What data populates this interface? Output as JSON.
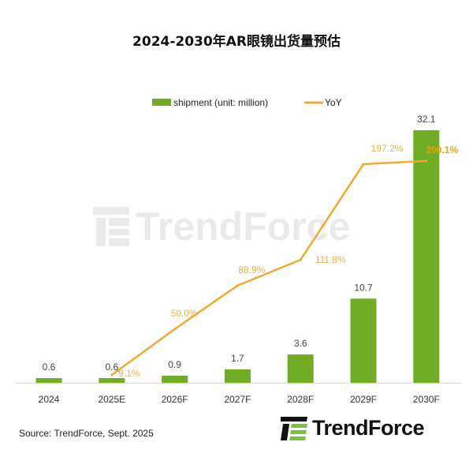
{
  "chart_data": {
    "type": "bar+line",
    "title": "2024-2030年AR眼镜出货量预估",
    "categories": [
      "2024",
      "2025E",
      "2026F",
      "2027F",
      "2028F",
      "2029F",
      "2030F"
    ],
    "series": [
      {
        "name": "shipment (unit: million)",
        "type": "bar",
        "color": "#70ad24",
        "values": [
          0.6,
          0.6,
          0.9,
          1.7,
          3.6,
          10.7,
          32.1
        ],
        "labels": [
          "0.6",
          "0.6",
          "0.9",
          "1.7",
          "3.6",
          "10.7",
          "32.1"
        ]
      },
      {
        "name": "YoY",
        "type": "line",
        "color": "#f0a830",
        "values": [
          null,
          9.1,
          50.0,
          88.9,
          111.8,
          197.2,
          200.1
        ],
        "labels": [
          "",
          "9.1%",
          "50.0%",
          "88.9%",
          "111.8%",
          "197.2%",
          "200.1%"
        ]
      }
    ],
    "legend": "top",
    "grid": false
  },
  "source": "Source: TrendForce, Sept. 2025",
  "logo": "TrendForce",
  "watermark": "TrendForce"
}
